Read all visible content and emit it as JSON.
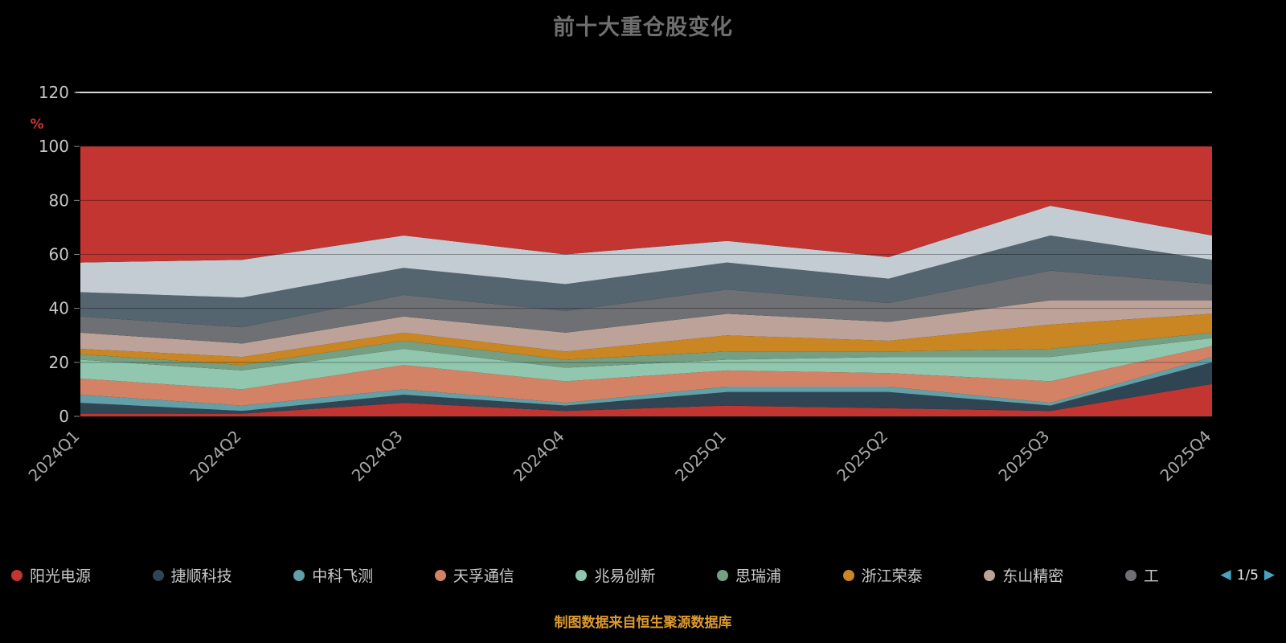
{
  "title": "前十大重仓股变化",
  "footer": "制图数据来自恒生聚源数据库",
  "y_axis": {
    "unit": "%",
    "unit_color": "#d0342c",
    "ticks": [
      0,
      20,
      40,
      60,
      80,
      100,
      120
    ]
  },
  "legend": {
    "pager": {
      "prev": "◀",
      "indicator": "1/5",
      "next": "▶"
    },
    "items": [
      {
        "label": "阳光电源",
        "color": "#c23531"
      },
      {
        "label": "捷顺科技",
        "color": "#2f4554"
      },
      {
        "label": "中科飞测",
        "color": "#61a0a8"
      },
      {
        "label": "天孚通信",
        "color": "#d48265"
      },
      {
        "label": "兆易创新",
        "color": "#91c7ae"
      },
      {
        "label": "思瑞浦",
        "color": "#749f83"
      },
      {
        "label": "浙江荣泰",
        "color": "#ca8622"
      },
      {
        "label": "东山精密",
        "color": "#bda29a"
      },
      {
        "label": "工",
        "color": "#6e7074"
      }
    ]
  },
  "chart_data": {
    "type": "area",
    "stacked": true,
    "title": "前十大重仓股变化",
    "ylabel": "%",
    "ylim": [
      0,
      120
    ],
    "grid": true,
    "legend_position": "bottom",
    "categories": [
      "2024Q1",
      "2024Q2",
      "2024Q3",
      "2024Q4",
      "2025Q1",
      "2025Q2",
      "2025Q3",
      "2025Q4"
    ],
    "series": [
      {
        "name": "阳光电源",
        "color": "#c23531",
        "values": [
          1,
          1,
          5,
          2,
          4,
          3,
          2,
          12
        ]
      },
      {
        "name": "捷顺科技",
        "color": "#2f4554",
        "values": [
          4,
          1,
          3,
          2,
          5,
          6,
          2,
          8
        ]
      },
      {
        "name": "中科飞测",
        "color": "#61a0a8",
        "values": [
          3,
          2,
          2,
          1,
          2,
          2,
          1,
          2
        ]
      },
      {
        "name": "天孚通信",
        "color": "#d48265",
        "values": [
          6,
          6,
          9,
          8,
          6,
          5,
          8,
          4
        ]
      },
      {
        "name": "兆易创新",
        "color": "#91c7ae",
        "values": [
          7,
          7,
          6,
          5,
          4,
          6,
          9,
          3
        ]
      },
      {
        "name": "思瑞浦",
        "color": "#749f83",
        "values": [
          2,
          2,
          3,
          3,
          3,
          2,
          3,
          2
        ]
      },
      {
        "name": "浙江荣泰",
        "color": "#ca8622",
        "values": [
          2,
          3,
          3,
          3,
          6,
          4,
          9,
          7
        ]
      },
      {
        "name": "东山精密",
        "color": "#bda29a",
        "values": [
          6,
          5,
          6,
          7,
          8,
          7,
          9,
          5
        ]
      },
      {
        "name": "工",
        "color": "#6e7074",
        "values": [
          6,
          6,
          8,
          8,
          9,
          7,
          11,
          6
        ]
      },
      {
        "name": "",
        "color": "#546570",
        "values": [
          9,
          11,
          10,
          10,
          10,
          9,
          13,
          9
        ]
      },
      {
        "name": "",
        "color": "#c4ccd3",
        "values": [
          11,
          14,
          12,
          11,
          8,
          8,
          11,
          9
        ]
      },
      {
        "name": "",
        "color": "#c23531",
        "values": [
          43,
          42,
          33,
          40,
          35,
          41,
          22,
          33
        ]
      }
    ]
  }
}
